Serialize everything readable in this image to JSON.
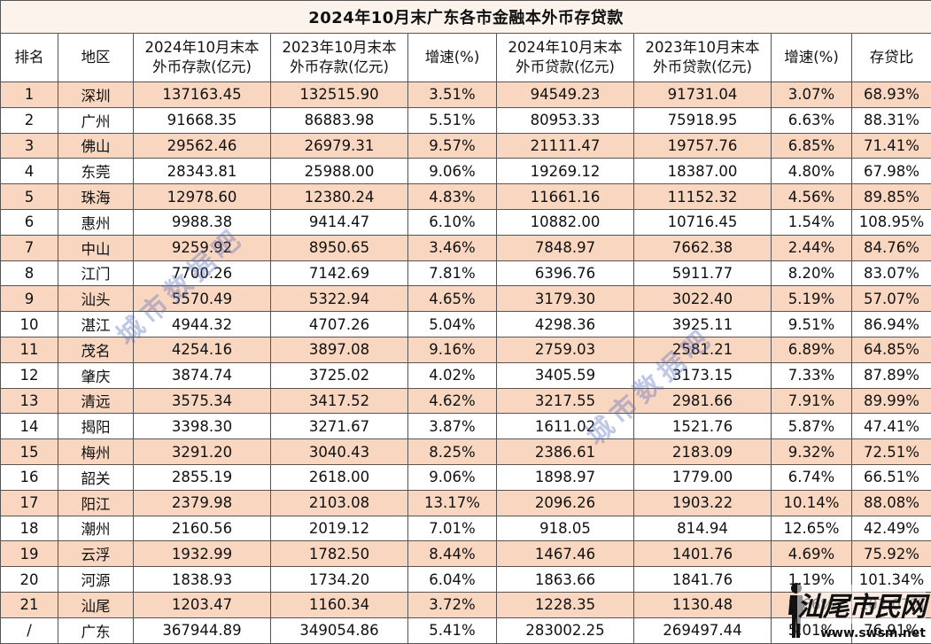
{
  "title": "2024年10月末广东各市金融本外币存贷款",
  "headers": [
    [
      "排名"
    ],
    [
      "地区"
    ],
    [
      "2024年10月末本",
      "外币存款(亿元)"
    ],
    [
      "2023年10月末本",
      "外币存款(亿元)"
    ],
    [
      "增速(%)"
    ],
    [
      "2024年10月末本",
      "外币贷款(亿元)"
    ],
    [
      "2023年10月末本",
      "外币贷款(亿元)"
    ],
    [
      "增速(%)"
    ],
    [
      "存贷比"
    ]
  ],
  "rows": [
    [
      "1",
      "深圳",
      "137163.45",
      "132515.90",
      "3.51%",
      "94549.23",
      "91731.04",
      "3.07%",
      "68.93%"
    ],
    [
      "2",
      "广州",
      "91668.35",
      "86883.98",
      "5.51%",
      "80953.33",
      "75918.95",
      "6.63%",
      "88.31%"
    ],
    [
      "3",
      "佛山",
      "29562.46",
      "26979.31",
      "9.57%",
      "21111.47",
      "19757.76",
      "6.85%",
      "71.41%"
    ],
    [
      "4",
      "东莞",
      "28343.81",
      "25988.00",
      "9.06%",
      "19269.12",
      "18387.00",
      "4.80%",
      "67.98%"
    ],
    [
      "5",
      "珠海",
      "12978.60",
      "12380.24",
      "4.83%",
      "11661.16",
      "11152.32",
      "4.56%",
      "89.85%"
    ],
    [
      "6",
      "惠州",
      "9988.38",
      "9414.47",
      "6.10%",
      "10882.00",
      "10716.45",
      "1.54%",
      "108.95%"
    ],
    [
      "7",
      "中山",
      "9259.92",
      "8950.65",
      "3.46%",
      "7848.97",
      "7662.38",
      "2.44%",
      "84.76%"
    ],
    [
      "8",
      "江门",
      "7700.26",
      "7142.69",
      "7.81%",
      "6396.76",
      "5911.77",
      "8.20%",
      "83.07%"
    ],
    [
      "9",
      "汕头",
      "5570.49",
      "5322.94",
      "4.65%",
      "3179.30",
      "3022.40",
      "5.19%",
      "57.07%"
    ],
    [
      "10",
      "湛江",
      "4944.32",
      "4707.26",
      "5.04%",
      "4298.36",
      "3925.11",
      "9.51%",
      "86.94%"
    ],
    [
      "11",
      "茂名",
      "4254.16",
      "3897.08",
      "9.16%",
      "2759.03",
      "2581.21",
      "6.89%",
      "64.85%"
    ],
    [
      "12",
      "肇庆",
      "3874.74",
      "3725.02",
      "4.02%",
      "3405.59",
      "3173.15",
      "7.33%",
      "87.89%"
    ],
    [
      "13",
      "清远",
      "3575.34",
      "3417.52",
      "4.62%",
      "3217.55",
      "2981.66",
      "7.91%",
      "89.99%"
    ],
    [
      "14",
      "揭阳",
      "3398.30",
      "3271.67",
      "3.87%",
      "1611.02",
      "1521.76",
      "5.87%",
      "47.41%"
    ],
    [
      "15",
      "梅州",
      "3291.20",
      "3040.43",
      "8.25%",
      "2386.61",
      "2183.09",
      "9.32%",
      "72.51%"
    ],
    [
      "16",
      "韶关",
      "2855.19",
      "2618.00",
      "9.06%",
      "1898.97",
      "1779.00",
      "6.74%",
      "66.51%"
    ],
    [
      "17",
      "阳江",
      "2379.98",
      "2103.08",
      "13.17%",
      "2096.26",
      "1903.22",
      "10.14%",
      "88.08%"
    ],
    [
      "18",
      "潮州",
      "2160.56",
      "2019.12",
      "7.01%",
      "918.05",
      "814.94",
      "12.65%",
      "42.49%"
    ],
    [
      "19",
      "云浮",
      "1932.99",
      "1782.50",
      "8.44%",
      "1467.46",
      "1401.76",
      "4.69%",
      "75.92%"
    ],
    [
      "20",
      "河源",
      "1838.93",
      "1734.20",
      "6.04%",
      "1863.66",
      "1841.76",
      "1.19%",
      "101.34%"
    ],
    [
      "21",
      "汕尾",
      "1203.47",
      "1160.34",
      "3.72%",
      "1228.35",
      "1130.48",
      "8.66%",
      "102.07%"
    ],
    [
      "/",
      "广东",
      "367944.89",
      "349054.86",
      "5.41%",
      "283002.25",
      "269497.44",
      "5.01%",
      "76.91%"
    ]
  ],
  "colors": {
    "alt_row": "#f8d6c0",
    "title_bg": "#fbf3ec",
    "border": "#555555",
    "watermark": "#5a6ebe"
  },
  "watermark_text": "城市数据吧",
  "logo": {
    "text": "汕尾市民网",
    "url": "www.swsm.net",
    "figure_icon": "standing-person-icon"
  }
}
